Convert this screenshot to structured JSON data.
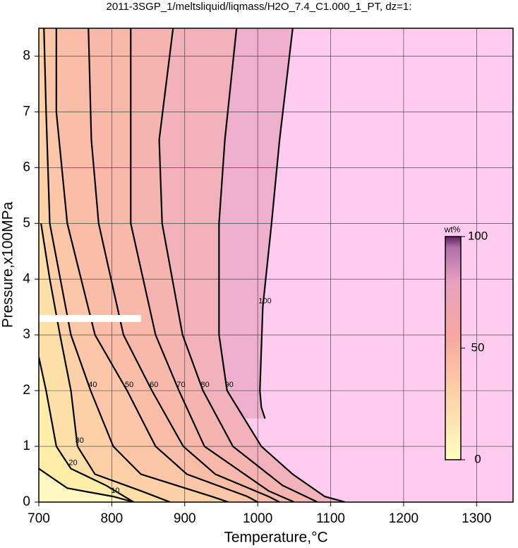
{
  "chart_data": {
    "type": "contour",
    "title": "2011-3SGP_1/meltsliquid/liqmass/H2O_7.4_C1.000_1_PT, dz=1:",
    "x_label": "Temperature,°C",
    "y_label": "Pressure,x100MPa",
    "xlim": [
      700,
      1350
    ],
    "xticks": [
      700,
      800,
      900,
      1000,
      1100,
      1200,
      1300
    ],
    "ylim": [
      0,
      8.5
    ],
    "yticks": [
      0,
      1,
      2,
      3,
      4,
      5,
      6,
      7,
      8
    ],
    "grid": true,
    "series": [
      {
        "name": "100",
        "color": "#eeb0cc",
        "x": [
          1048,
          1030,
          1019,
          1007,
          1003,
          1005,
          1010
        ],
        "y": [
          8.5,
          6.5,
          5,
          3.5,
          2,
          1.7,
          1.5
        ]
      },
      {
        "name": "90",
        "color": "#f2b2bc",
        "x": [
          971,
          955,
          947,
          947,
          958,
          1005,
          1048,
          1092,
          1120
        ],
        "y": [
          8.5,
          6.5,
          5,
          3,
          2,
          1,
          0.5,
          0.1,
          0
        ]
      },
      {
        "name": "80",
        "color": "#f5b4b0",
        "x": [
          884,
          865,
          869,
          897,
          925,
          966,
          1034,
          1082
        ],
        "y": [
          8.5,
          6.5,
          5,
          3,
          2,
          1,
          0.3,
          0
        ]
      },
      {
        "name": "70",
        "color": "#f8b8aa",
        "x": [
          826,
          826,
          826,
          860,
          892,
          927,
          1015,
          1050
        ],
        "y": [
          8.5,
          6.5,
          5,
          3,
          2,
          1,
          0.2,
          0
        ]
      },
      {
        "name": "60",
        "color": "#fabea8",
        "x": [
          768,
          772,
          782,
          816,
          855,
          898,
          942,
          1015,
          1030
        ],
        "y": [
          8.5,
          6.5,
          5,
          3,
          2,
          1,
          0.5,
          0.1,
          0
        ]
      },
      {
        "name": "50",
        "color": "#fcc6a8",
        "x": [
          724,
          724,
          739,
          777,
          821,
          860,
          903,
          986,
          1000
        ],
        "y": [
          8.5,
          7,
          5,
          3,
          2,
          1,
          0.5,
          0.1,
          0
        ]
      },
      {
        "name": "40",
        "color": "#fdd0a8",
        "x": [
          707,
          710,
          715,
          744,
          771,
          802,
          840,
          937,
          960
        ],
        "y": [
          8.5,
          7,
          5,
          3,
          2,
          1,
          0.5,
          0.1,
          0
        ]
      },
      {
        "name": "30",
        "color": "#fde0a8",
        "x": [
          703,
          715,
          729,
          744,
          753,
          777,
          840,
          880
        ],
        "y": [
          5,
          4,
          3,
          2,
          1,
          0.5,
          0.2,
          0
        ]
      },
      {
        "name": "20",
        "color": "#feeeaa",
        "x": [
          700,
          710,
          724,
          744,
          792,
          830
        ],
        "y": [
          2.6,
          2,
          1,
          0.6,
          0.3,
          0
        ]
      },
      {
        "name": "10",
        "color": "#fff8c0",
        "x": [
          700,
          739,
          802,
          830
        ],
        "y": [
          0.6,
          0.25,
          0.1,
          0
        ]
      }
    ],
    "colorbar": {
      "label": "wt%",
      "lim": [
        0,
        100
      ],
      "ticks": [
        0,
        50,
        100
      ]
    }
  }
}
